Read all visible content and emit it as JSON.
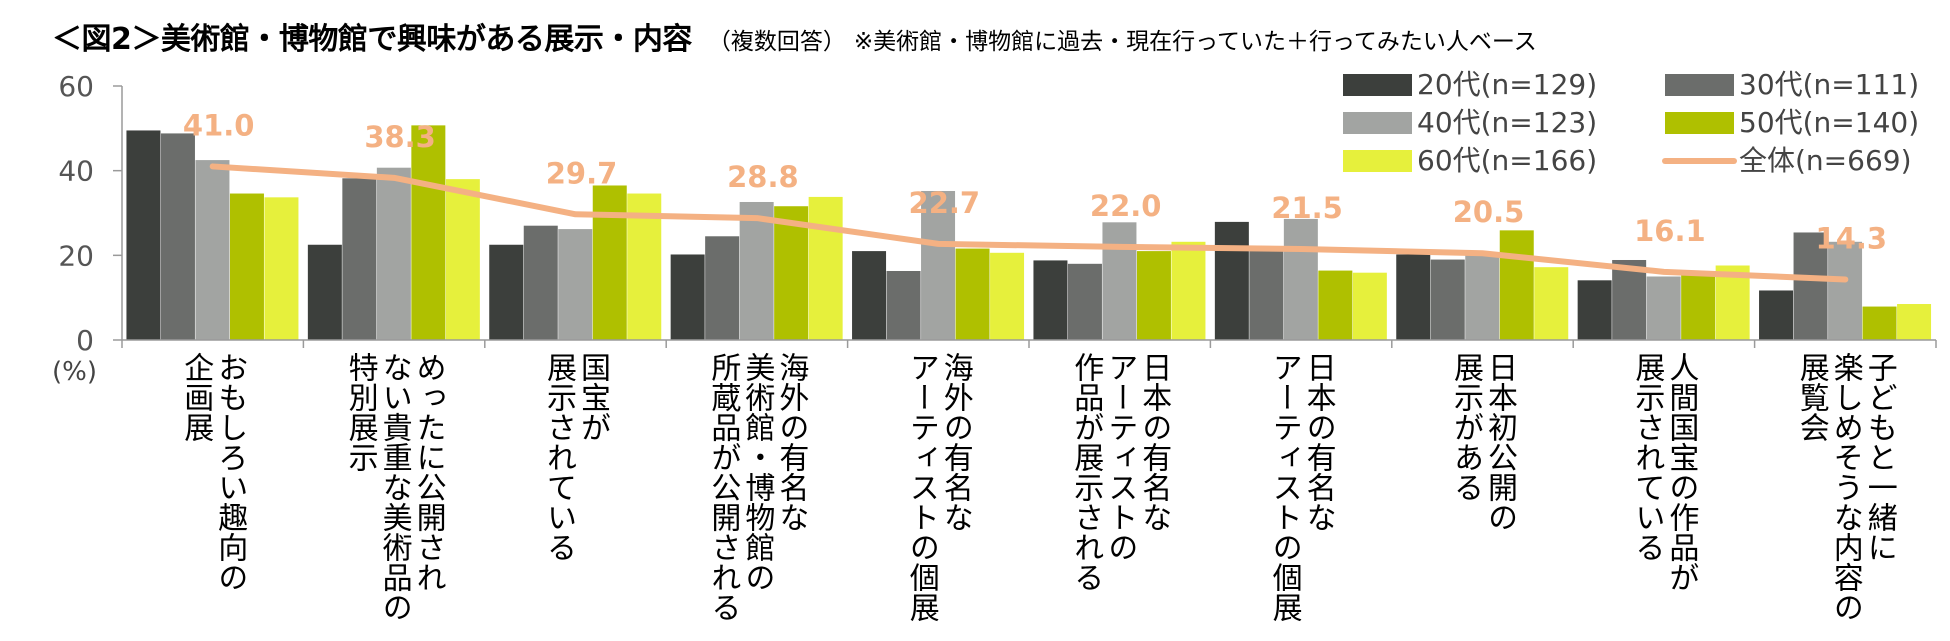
{
  "header": {
    "title": "＜図2＞美術館・博物館で興味がある展示・内容",
    "subtitle": "（複数回答）",
    "note": "※美術館・博物館に過去・現在行っていた＋行ってみたい人ベース"
  },
  "chart_data": {
    "type": "bar",
    "title": "＜図2＞美術館・博物館で興味がある展示・内容",
    "xlabel": "",
    "ylabel": "(%)",
    "ylim": [
      0,
      60
    ],
    "yticks": [
      "0",
      "20",
      "40",
      "60"
    ],
    "grid": false,
    "legend_position": "top-right",
    "categories": [
      [
        "おもしろい趣向の",
        "企画展"
      ],
      [
        "めったに公開され",
        "ない貴重な美術品の",
        "特別展示"
      ],
      [
        "国宝が",
        "展示されている"
      ],
      [
        "海外の有名な",
        "美術館・博物館の",
        "所蔵品が公開される"
      ],
      [
        "海外の有名な",
        "アーティストの個展"
      ],
      [
        "日本の有名な",
        "アーティストの",
        "作品が展示される"
      ],
      [
        "日本の有名な",
        "アーティストの個展"
      ],
      [
        "日本初公開の",
        "展示がある"
      ],
      [
        "人間国宝の作品が",
        "展示されている"
      ],
      [
        "子どもと一緒に",
        "楽しめそうな内容の",
        "展覧会"
      ]
    ],
    "series": [
      {
        "name": "20代(n=129)",
        "color": "#3C3F3C",
        "values": [
          49.5,
          22.5,
          22.5,
          20.2,
          21.0,
          18.8,
          27.9,
          20.2,
          14.1,
          11.7
        ]
      },
      {
        "name": "30代(n=111)",
        "color": "#6B6D6B",
        "values": [
          48.8,
          38.2,
          27.0,
          24.5,
          16.3,
          18.0,
          21.5,
          19.0,
          18.9,
          25.4
        ]
      },
      {
        "name": "40代(n=123)",
        "color": "#A2A4A2",
        "values": [
          42.5,
          40.7,
          26.2,
          32.6,
          35.2,
          27.8,
          28.6,
          20.3,
          15.0,
          23.2
        ]
      },
      {
        "name": "50代(n=140)",
        "color": "#AFC000",
        "values": [
          34.6,
          50.7,
          36.5,
          31.6,
          21.6,
          21.0,
          16.4,
          25.9,
          15.8,
          7.9
        ]
      },
      {
        "name": "60代(n=166)",
        "color": "#E6F03C",
        "values": [
          33.7,
          38.0,
          34.6,
          33.8,
          20.6,
          23.2,
          15.9,
          17.2,
          17.6,
          8.5
        ]
      }
    ],
    "line": {
      "name": "全体(n=669)",
      "color": "#F4B183",
      "values": [
        41.0,
        38.3,
        29.7,
        28.8,
        22.7,
        22.0,
        21.5,
        20.5,
        16.1,
        14.3
      ],
      "labels": [
        "41.0",
        "38.3",
        "29.7",
        "28.8",
        "22.7",
        "22.0",
        "21.5",
        "20.5",
        "16.1",
        "14.3"
      ]
    }
  }
}
